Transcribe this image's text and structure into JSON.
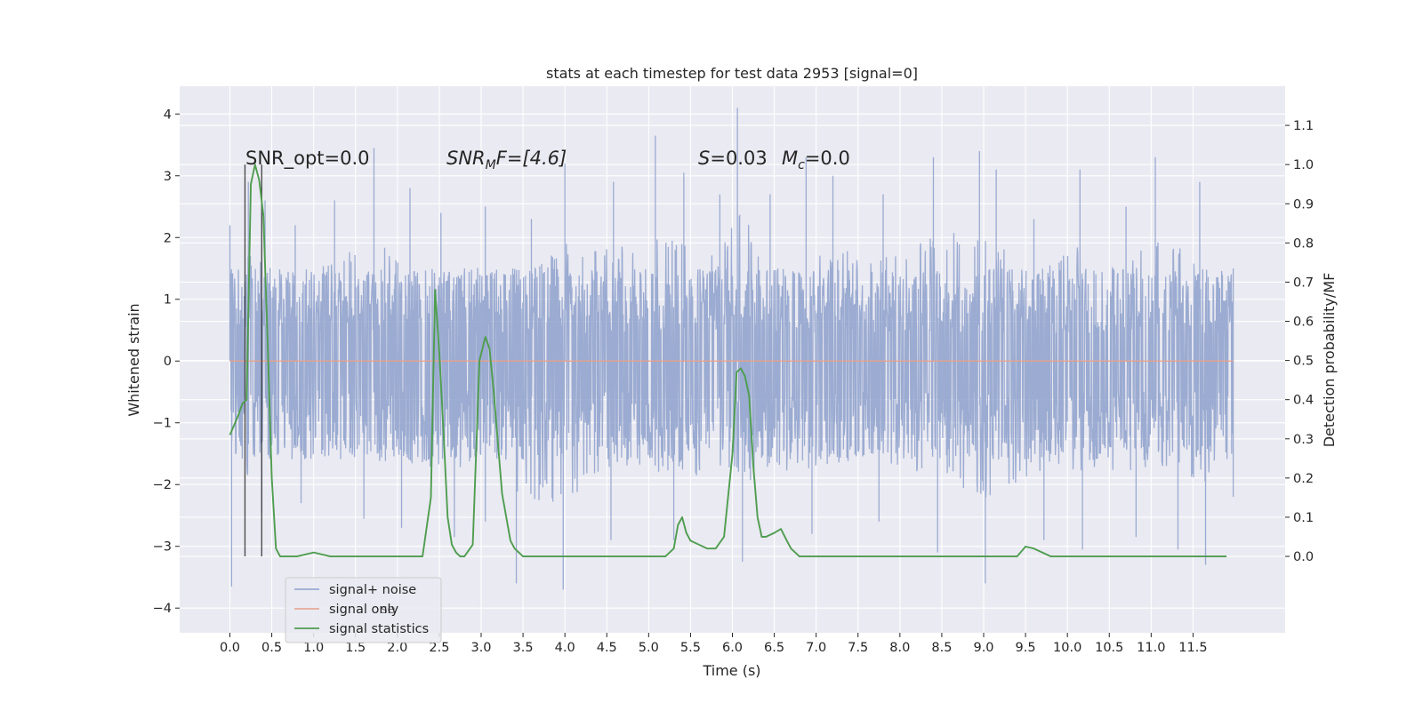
{
  "chart_data": {
    "type": "line",
    "title": "stats at each timestep for test data 2953 [signal=0]",
    "xlabel": "Time (s)",
    "ylabel_left": "Whitened strain",
    "ylabel_right": "Detection probability/MF",
    "xlim": [
      -0.6,
      12.6
    ],
    "ylim_left": [
      -4.4,
      4.45
    ],
    "ylim_right": [
      -0.195,
      1.2
    ],
    "x_ticks": [
      "0.0",
      "0.5",
      "1.0",
      "1.5",
      "2.0",
      "2.5",
      "3.0",
      "3.5",
      "4.0",
      "4.5",
      "5.0",
      "5.5",
      "6.0",
      "6.5",
      "7.0",
      "7.5",
      "8.0",
      "8.5",
      "9.0",
      "9.5",
      "10.0",
      "10.5",
      "11.0",
      "11.5"
    ],
    "y_ticks_left": [
      "4",
      "3",
      "2",
      "1",
      "0",
      "−1",
      "−2",
      "−3",
      "−4"
    ],
    "y_ticks_right": [
      "1.1",
      "1.0",
      "0.9",
      "0.8",
      "0.7",
      "0.6",
      "0.5",
      "0.4",
      "0.3",
      "0.2",
      "0.1",
      "0.0"
    ],
    "grid": true,
    "annotations": {
      "snr_opt": "SNR_opt=0.0",
      "snr_mf_sym": "SNR",
      "snr_mf_sub": "M",
      "snr_mf_rest": "F=[4.6]",
      "s_sym": "S",
      "s_rest": "=0.03",
      "mc_sym": "M",
      "mc_sub": "c",
      "mc_rest": "=0.0"
    },
    "vertical_markers": [
      0.18,
      0.38
    ],
    "legend": {
      "placement": "lower-left",
      "entries": [
        "signal+ noise",
        "signal only",
        "signal statistics"
      ]
    },
    "series": [
      {
        "name": "signal+ noise",
        "color": "#8da0cb",
        "t_start": 0.0,
        "t_end": 11.98,
        "band_typical": [
          -1.6,
          1.5
        ],
        "band_peaks_high": [
          [
            0.0,
            2.2
          ],
          [
            0.22,
            2.9
          ],
          [
            0.42,
            2.6
          ],
          [
            0.78,
            2.2
          ],
          [
            1.25,
            2.6
          ],
          [
            1.72,
            3.45
          ],
          [
            2.15,
            2.8
          ],
          [
            2.52,
            2.4
          ],
          [
            3.05,
            2.5
          ],
          [
            3.6,
            2.3
          ],
          [
            4.0,
            3.2
          ],
          [
            4.58,
            2.9
          ],
          [
            5.08,
            3.65
          ],
          [
            5.42,
            3.05
          ],
          [
            5.85,
            2.7
          ],
          [
            6.06,
            4.1
          ],
          [
            6.45,
            2.7
          ],
          [
            6.88,
            3.3
          ],
          [
            7.2,
            3.0
          ],
          [
            7.8,
            2.7
          ],
          [
            8.4,
            3.3
          ],
          [
            8.95,
            3.4
          ],
          [
            9.15,
            3.1
          ],
          [
            9.6,
            2.3
          ],
          [
            10.15,
            3.1
          ],
          [
            10.7,
            2.5
          ],
          [
            11.05,
            3.3
          ],
          [
            11.58,
            2.9
          ],
          [
            11.98,
            1.5
          ]
        ],
        "band_peaks_low": [
          [
            0.02,
            -3.65
          ],
          [
            0.38,
            -2.45
          ],
          [
            0.85,
            -2.3
          ],
          [
            1.6,
            -2.55
          ],
          [
            2.05,
            -2.7
          ],
          [
            2.68,
            -2.85
          ],
          [
            3.05,
            -2.6
          ],
          [
            3.42,
            -3.6
          ],
          [
            3.98,
            -3.7
          ],
          [
            4.55,
            -2.9
          ],
          [
            5.3,
            -2.9
          ],
          [
            6.12,
            -3.25
          ],
          [
            6.95,
            -2.8
          ],
          [
            7.75,
            -2.6
          ],
          [
            8.45,
            -3.1
          ],
          [
            9.02,
            -3.6
          ],
          [
            9.72,
            -2.9
          ],
          [
            10.18,
            -3.05
          ],
          [
            10.82,
            -2.85
          ],
          [
            11.32,
            -3.05
          ],
          [
            11.65,
            -3.3
          ],
          [
            11.98,
            -2.2
          ]
        ]
      },
      {
        "name": "signal only",
        "color": "#e5a08b",
        "x": [
          0.0,
          11.98
        ],
        "y": [
          0.0,
          0.0
        ]
      },
      {
        "name": "signal statistics",
        "color": "#4f9d4f",
        "axis": "right",
        "x": [
          0.0,
          0.1,
          0.15,
          0.2,
          0.25,
          0.3,
          0.35,
          0.4,
          0.45,
          0.5,
          0.55,
          0.6,
          0.7,
          0.8,
          1.0,
          1.2,
          1.5,
          2.0,
          2.2,
          2.3,
          2.4,
          2.45,
          2.5,
          2.55,
          2.6,
          2.65,
          2.7,
          2.75,
          2.8,
          2.9,
          2.98,
          3.05,
          3.1,
          3.15,
          3.25,
          3.35,
          3.4,
          3.5,
          3.7,
          4.0,
          4.5,
          5.0,
          5.2,
          5.3,
          5.35,
          5.4,
          5.45,
          5.5,
          5.6,
          5.7,
          5.8,
          5.9,
          6.0,
          6.05,
          6.1,
          6.15,
          6.2,
          6.25,
          6.3,
          6.35,
          6.4,
          6.5,
          6.58,
          6.65,
          6.7,
          6.8,
          6.9,
          7.0,
          7.2,
          7.5,
          8.0,
          9.0,
          9.3,
          9.4,
          9.5,
          9.6,
          9.7,
          9.8,
          10.0,
          10.5,
          11.0,
          11.5,
          11.9
        ],
        "y": [
          0.31,
          0.36,
          0.39,
          0.4,
          0.95,
          1.0,
          0.96,
          0.87,
          0.55,
          0.2,
          0.02,
          0.0,
          0.0,
          0.0,
          0.01,
          0.0,
          0.0,
          0.0,
          0.0,
          0.0,
          0.15,
          0.68,
          0.52,
          0.32,
          0.1,
          0.03,
          0.01,
          0.0,
          0.0,
          0.03,
          0.5,
          0.56,
          0.53,
          0.42,
          0.16,
          0.04,
          0.02,
          0.0,
          0.0,
          0.0,
          0.0,
          0.0,
          0.0,
          0.02,
          0.08,
          0.1,
          0.06,
          0.04,
          0.03,
          0.02,
          0.02,
          0.05,
          0.26,
          0.47,
          0.48,
          0.46,
          0.41,
          0.23,
          0.1,
          0.05,
          0.05,
          0.06,
          0.07,
          0.04,
          0.02,
          0.0,
          0.0,
          0.0,
          0.0,
          0.0,
          0.0,
          0.0,
          0.0,
          0.0,
          0.025,
          0.02,
          0.01,
          0.0,
          0.0,
          0.0,
          0.0,
          0.0,
          0.0
        ]
      }
    ]
  }
}
